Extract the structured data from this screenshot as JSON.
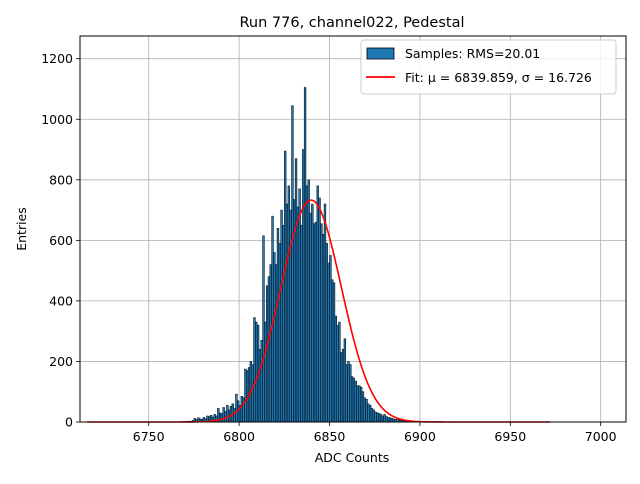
{
  "chart_data": {
    "type": "bar",
    "title": "Run 776, channel022, Pedestal",
    "xlabel": "ADC Counts",
    "ylabel": "Entries",
    "xlim": [
      6712,
      7014
    ],
    "ylim": [
      0,
      1275
    ],
    "x_ticks": [
      6750,
      6800,
      6850,
      6900,
      6950,
      7000
    ],
    "y_ticks": [
      0,
      200,
      400,
      600,
      800,
      1000,
      1200
    ],
    "grid": true,
    "legend_placement": "top-right",
    "series": [
      {
        "name": "Samples: RMS=20.01",
        "kind": "histogram",
        "color": "#1f77b4",
        "edge_color": "#000000",
        "bin_width": 1,
        "bins": [
          [
            6747,
            1
          ],
          [
            6755,
            1
          ],
          [
            6762,
            1
          ],
          [
            6766,
            1
          ],
          [
            6768,
            1
          ],
          [
            6770,
            2
          ],
          [
            6771,
            1
          ],
          [
            6772,
            3
          ],
          [
            6773,
            2
          ],
          [
            6774,
            5
          ],
          [
            6775,
            12
          ],
          [
            6776,
            8
          ],
          [
            6777,
            14
          ],
          [
            6778,
            10
          ],
          [
            6779,
            9
          ],
          [
            6780,
            15
          ],
          [
            6781,
            11
          ],
          [
            6782,
            20
          ],
          [
            6783,
            18
          ],
          [
            6784,
            22
          ],
          [
            6785,
            16
          ],
          [
            6786,
            25
          ],
          [
            6787,
            20
          ],
          [
            6788,
            45
          ],
          [
            6789,
            30
          ],
          [
            6790,
            28
          ],
          [
            6791,
            48
          ],
          [
            6792,
            35
          ],
          [
            6793,
            55
          ],
          [
            6794,
            40
          ],
          [
            6795,
            52
          ],
          [
            6796,
            60
          ],
          [
            6797,
            45
          ],
          [
            6798,
            92
          ],
          [
            6799,
            70
          ],
          [
            6800,
            55
          ],
          [
            6801,
            85
          ],
          [
            6802,
            80
          ],
          [
            6803,
            175
          ],
          [
            6804,
            170
          ],
          [
            6805,
            180
          ],
          [
            6806,
            200
          ],
          [
            6807,
            190
          ],
          [
            6808,
            345
          ],
          [
            6809,
            330
          ],
          [
            6810,
            320
          ],
          [
            6811,
            240
          ],
          [
            6812,
            270
          ],
          [
            6813,
            615
          ],
          [
            6814,
            330
          ],
          [
            6815,
            450
          ],
          [
            6816,
            480
          ],
          [
            6817,
            520
          ],
          [
            6818,
            680
          ],
          [
            6819,
            560
          ],
          [
            6820,
            520
          ],
          [
            6821,
            640
          ],
          [
            6822,
            590
          ],
          [
            6823,
            700
          ],
          [
            6824,
            650
          ],
          [
            6825,
            895
          ],
          [
            6826,
            720
          ],
          [
            6827,
            780
          ],
          [
            6828,
            700
          ],
          [
            6829,
            1045
          ],
          [
            6830,
            735
          ],
          [
            6831,
            870
          ],
          [
            6832,
            710
          ],
          [
            6833,
            770
          ],
          [
            6834,
            650
          ],
          [
            6835,
            900
          ],
          [
            6836,
            1105
          ],
          [
            6837,
            780
          ],
          [
            6838,
            800
          ],
          [
            6839,
            690
          ],
          [
            6840,
            720
          ],
          [
            6841,
            655
          ],
          [
            6842,
            660
          ],
          [
            6843,
            780
          ],
          [
            6844,
            740
          ],
          [
            6845,
            655
          ],
          [
            6846,
            620
          ],
          [
            6847,
            720
          ],
          [
            6848,
            590
          ],
          [
            6849,
            525
          ],
          [
            6850,
            550
          ],
          [
            6851,
            470
          ],
          [
            6852,
            460
          ],
          [
            6853,
            350
          ],
          [
            6854,
            320
          ],
          [
            6855,
            330
          ],
          [
            6856,
            230
          ],
          [
            6857,
            240
          ],
          [
            6858,
            275
          ],
          [
            6859,
            190
          ],
          [
            6860,
            200
          ],
          [
            6861,
            190
          ],
          [
            6862,
            150
          ],
          [
            6863,
            145
          ],
          [
            6864,
            135
          ],
          [
            6865,
            120
          ],
          [
            6866,
            120
          ],
          [
            6867,
            115
          ],
          [
            6868,
            100
          ],
          [
            6869,
            80
          ],
          [
            6870,
            75
          ],
          [
            6871,
            60
          ],
          [
            6872,
            55
          ],
          [
            6873,
            45
          ],
          [
            6874,
            40
          ],
          [
            6875,
            33
          ],
          [
            6876,
            30
          ],
          [
            6877,
            28
          ],
          [
            6878,
            25
          ],
          [
            6879,
            20
          ],
          [
            6880,
            25
          ],
          [
            6881,
            18
          ],
          [
            6882,
            15
          ],
          [
            6883,
            14
          ],
          [
            6884,
            12
          ],
          [
            6885,
            10
          ],
          [
            6886,
            9
          ],
          [
            6887,
            8
          ],
          [
            6888,
            7
          ],
          [
            6889,
            6
          ],
          [
            6890,
            5
          ],
          [
            6891,
            5
          ],
          [
            6892,
            4
          ],
          [
            6893,
            4
          ],
          [
            6894,
            3
          ],
          [
            6895,
            3
          ],
          [
            6896,
            3
          ],
          [
            6897,
            2
          ],
          [
            6898,
            2
          ],
          [
            6899,
            2
          ],
          [
            6900,
            2
          ],
          [
            6901,
            2
          ],
          [
            6902,
            1
          ],
          [
            6903,
            1
          ],
          [
            6904,
            1
          ],
          [
            6905,
            1
          ],
          [
            6906,
            1
          ],
          [
            6908,
            1
          ],
          [
            6910,
            1
          ],
          [
            6912,
            1
          ],
          [
            6915,
            1
          ],
          [
            6918,
            1
          ],
          [
            6922,
            1
          ],
          [
            6928,
            1
          ],
          [
            6935,
            1
          ],
          [
            6948,
            1
          ],
          [
            6970,
            1
          ]
        ]
      },
      {
        "name": "Fit: μ = 6839.859, σ = 16.726",
        "kind": "gaussian_fit",
        "color": "#ff0000",
        "mu": 6839.859,
        "sigma": 16.726,
        "amplitude": 733,
        "x_range": [
          6716,
          6972
        ]
      }
    ]
  }
}
